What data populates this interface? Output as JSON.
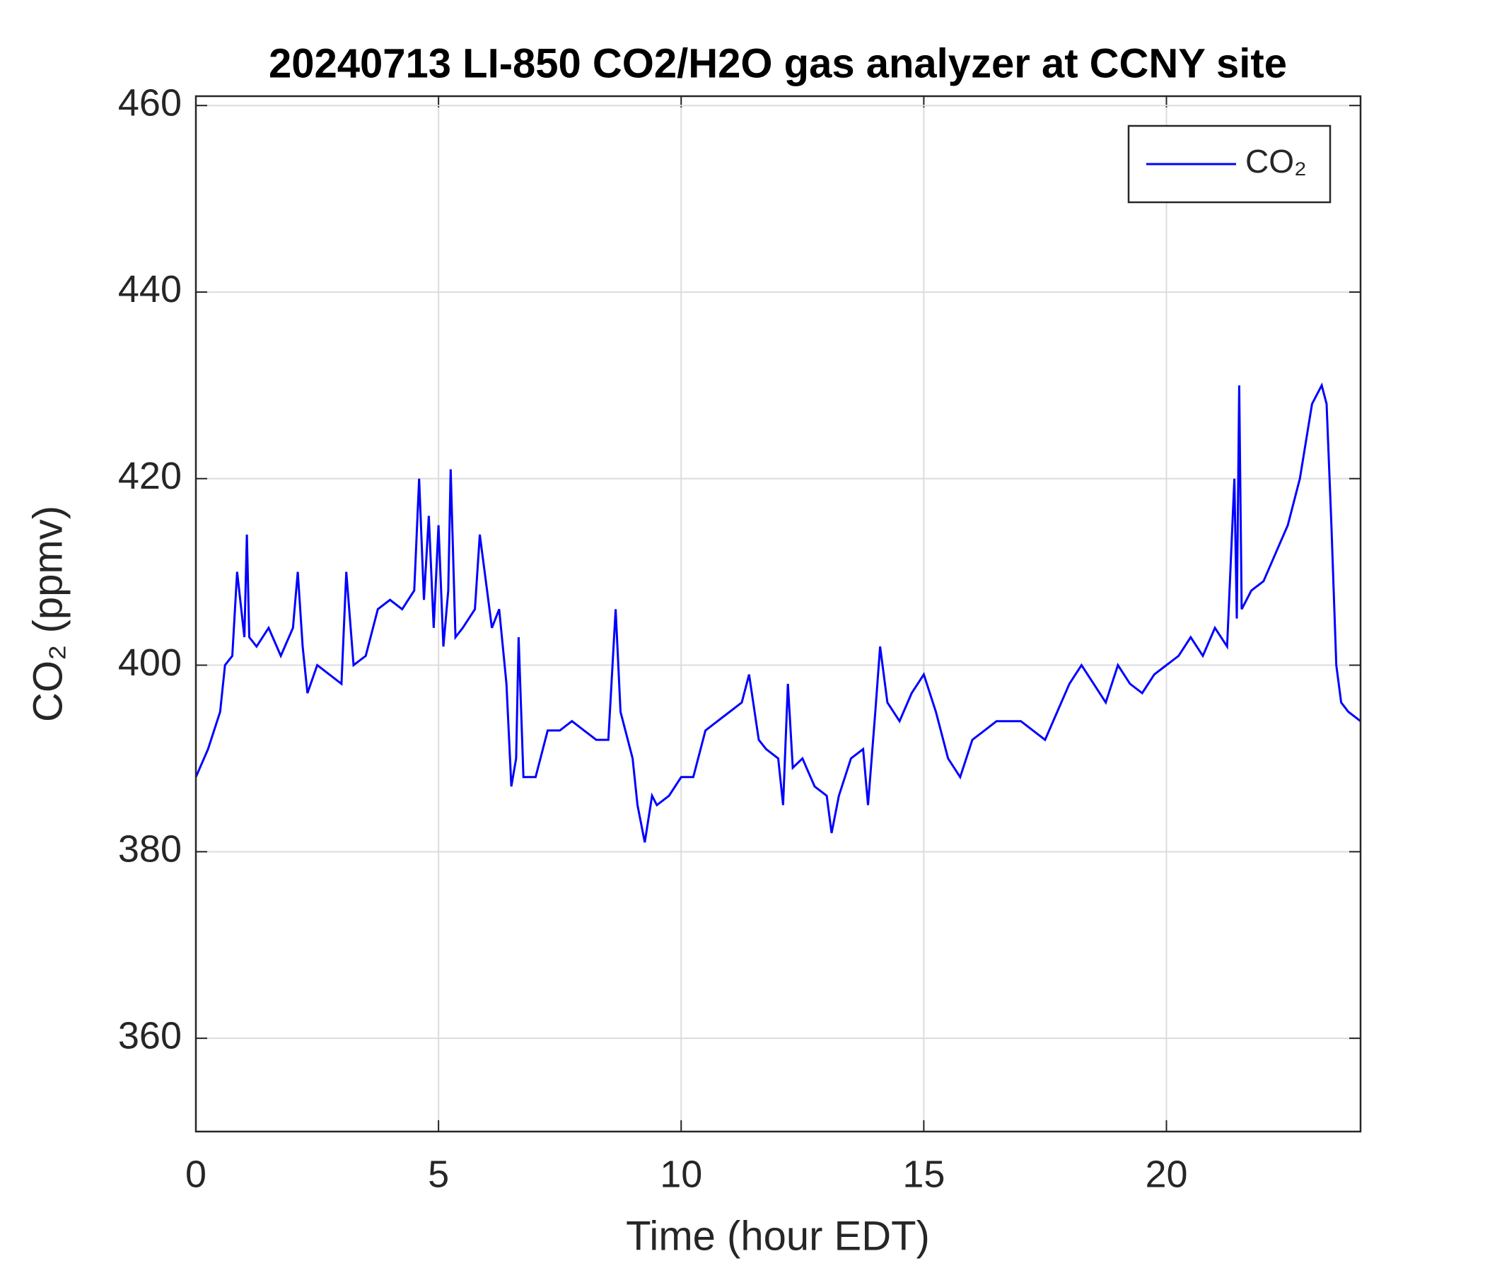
{
  "chart_data": {
    "type": "line",
    "title": "20240713 LI-850 CO2/H2O gas analyzer at CCNY site",
    "x_label": "Time (hour EDT)",
    "y_label": "CO₂ (ppmv)",
    "x": [
      0,
      0.25,
      0.5,
      0.6,
      0.75,
      0.85,
      1.0,
      1.05,
      1.1,
      1.25,
      1.5,
      1.75,
      2.0,
      2.1,
      2.2,
      2.3,
      2.5,
      2.75,
      3.0,
      3.1,
      3.25,
      3.5,
      3.75,
      4.0,
      4.25,
      4.5,
      4.6,
      4.7,
      4.8,
      4.9,
      5.0,
      5.1,
      5.2,
      5.25,
      5.35,
      5.5,
      5.75,
      5.85,
      6.0,
      6.1,
      6.25,
      6.4,
      6.5,
      6.6,
      6.65,
      6.75,
      7.0,
      7.25,
      7.5,
      7.75,
      8.0,
      8.25,
      8.5,
      8.65,
      8.75,
      8.9,
      9.0,
      9.1,
      9.25,
      9.4,
      9.5,
      9.75,
      10.0,
      10.25,
      10.5,
      10.75,
      11.0,
      11.25,
      11.4,
      11.6,
      11.75,
      12.0,
      12.1,
      12.2,
      12.3,
      12.5,
      12.75,
      13.0,
      13.1,
      13.25,
      13.5,
      13.75,
      13.85,
      14.0,
      14.1,
      14.25,
      14.5,
      14.75,
      15.0,
      15.25,
      15.5,
      15.75,
      16.0,
      16.25,
      16.5,
      16.75,
      17.0,
      17.25,
      17.5,
      17.75,
      18.0,
      18.25,
      18.5,
      18.75,
      19.0,
      19.25,
      19.5,
      19.75,
      20.0,
      20.25,
      20.5,
      20.75,
      21.0,
      21.25,
      21.4,
      21.45,
      21.5,
      21.55,
      21.75,
      22.0,
      22.25,
      22.5,
      22.75,
      23.0,
      23.1,
      23.2,
      23.3,
      23.4,
      23.5,
      23.6,
      23.75,
      24.0
    ],
    "series": [
      {
        "name": "CO₂",
        "color": "#0000ff",
        "values": [
          388,
          391,
          395,
          400,
          401,
          410,
          403,
          414,
          403,
          402,
          404,
          401,
          404,
          410,
          402,
          397,
          400,
          399,
          398,
          410,
          400,
          401,
          406,
          407,
          406,
          408,
          420,
          407,
          416,
          404,
          415,
          402,
          408,
          421,
          403,
          404,
          406,
          414,
          408,
          404,
          406,
          398,
          387,
          390,
          403,
          388,
          388,
          393,
          393,
          394,
          393,
          392,
          392,
          406,
          395,
          392,
          390,
          385,
          381,
          386,
          385,
          386,
          388,
          388,
          393,
          394,
          395,
          396,
          399,
          392,
          391,
          390,
          385,
          398,
          389,
          390,
          387,
          386,
          382,
          386,
          390,
          391,
          385,
          395,
          402,
          396,
          394,
          397,
          399,
          395,
          390,
          388,
          392,
          393,
          394,
          394,
          394,
          393,
          392,
          395,
          398,
          400,
          398,
          396,
          400,
          398,
          397,
          399,
          400,
          401,
          403,
          401,
          404,
          402,
          420,
          405,
          430,
          406,
          408,
          409,
          412,
          415,
          420,
          428,
          429,
          430,
          428,
          415,
          400,
          396,
          395,
          394
        ]
      }
    ],
    "xlim": [
      0,
      24
    ],
    "xticks": [
      0,
      5,
      10,
      15,
      20
    ],
    "ylim": [
      350,
      461
    ],
    "yticks": [
      360,
      380,
      400,
      420,
      440,
      460
    ],
    "grid": true,
    "legend": "upper right"
  }
}
